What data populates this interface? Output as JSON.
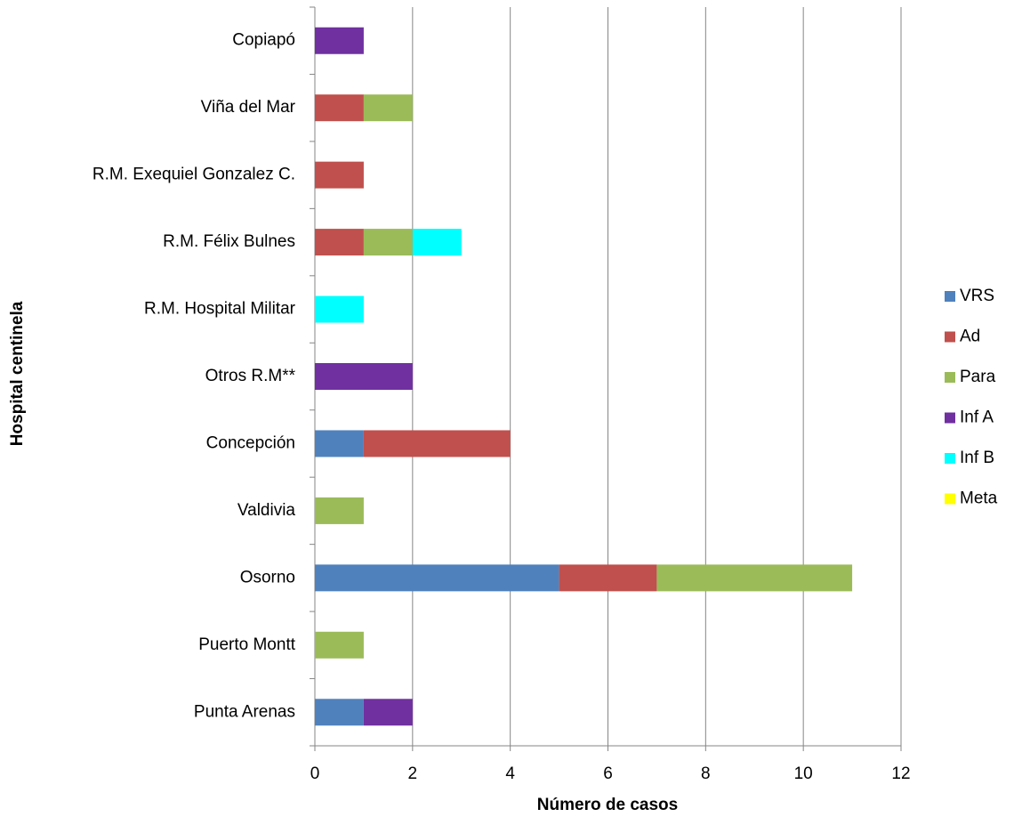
{
  "chart_data": {
    "type": "bar",
    "orientation": "horizontal",
    "stacked": true,
    "x_label": "Número de casos",
    "y_label": "Hospital centinela",
    "categories": [
      "Copiapó",
      "Viña del Mar",
      "R.M. Exequiel Gonzalez C.",
      "R.M. Félix Bulnes",
      "R.M. Hospital Militar",
      "Otros R.M**",
      "Concepción",
      "Valdivia",
      "Osorno",
      "Puerto Montt",
      "Punta Arenas"
    ],
    "series": [
      {
        "name": "VRS",
        "color": "#4f81bd",
        "values": [
          0,
          0,
          0,
          0,
          0,
          0,
          1,
          0,
          5,
          0,
          1
        ]
      },
      {
        "name": "Ad",
        "color": "#c0504d",
        "values": [
          0,
          1,
          1,
          1,
          0,
          0,
          3,
          0,
          2,
          0,
          0
        ]
      },
      {
        "name": "Para",
        "color": "#9bbb59",
        "values": [
          0,
          1,
          0,
          1,
          0,
          0,
          0,
          1,
          4,
          1,
          0
        ]
      },
      {
        "name": "Inf A",
        "color": "#7030a0",
        "values": [
          1,
          0,
          0,
          0,
          0,
          2,
          0,
          0,
          0,
          0,
          1
        ]
      },
      {
        "name": "Inf B",
        "color": "#00ffff",
        "values": [
          0,
          0,
          0,
          1,
          1,
          0,
          0,
          0,
          0,
          0,
          0
        ]
      },
      {
        "name": "Meta",
        "color": "#ffff00",
        "values": [
          0,
          0,
          0,
          0,
          0,
          0,
          0,
          0,
          0,
          0,
          0
        ]
      }
    ],
    "xlim": [
      0,
      12
    ],
    "xticks": [
      0,
      2,
      4,
      6,
      8,
      10,
      12
    ],
    "grid": true,
    "legend": "right"
  }
}
